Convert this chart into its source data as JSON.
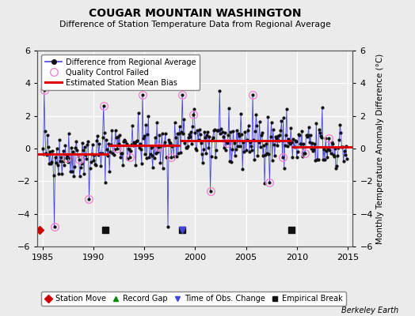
{
  "title": "COUGAR MOUNTAIN WASHINGTON",
  "subtitle": "Difference of Station Temperature Data from Regional Average",
  "ylabel": "Monthly Temperature Anomaly Difference (°C)",
  "xlabel_bottom": "Berkeley Earth",
  "xlim": [
    1984.5,
    2015.5
  ],
  "ylim": [
    -6,
    6
  ],
  "yticks": [
    -6,
    -4,
    -2,
    0,
    2,
    4,
    6
  ],
  "xticks": [
    1985,
    1990,
    1995,
    2000,
    2005,
    2010,
    2015
  ],
  "background_color": "#ebebeb",
  "plot_bg_color": "#ebebeb",
  "bias_segments": [
    {
      "xstart": 1984.5,
      "xend": 1991.5,
      "bias": -0.35
    },
    {
      "xstart": 1991.5,
      "xend": 1998.5,
      "bias": 0.2
    },
    {
      "xstart": 1998.5,
      "xend": 2009.5,
      "bias": 0.5
    },
    {
      "xstart": 2009.5,
      "xend": 2015.5,
      "bias": 0.1
    }
  ],
  "empirical_breaks": [
    1991.2,
    1998.7,
    2009.5
  ],
  "station_moves": [
    1984.75
  ],
  "obs_changes": [
    1998.7
  ],
  "seed": 42,
  "line_color": "#4444dd",
  "dot_color": "#111111",
  "bias_color": "#dd0000",
  "qc_fail_color": "#ee88cc",
  "station_move_color": "#cc0000",
  "obs_change_color": "#4444dd",
  "gap_color": "#008800",
  "break_color": "#111111"
}
